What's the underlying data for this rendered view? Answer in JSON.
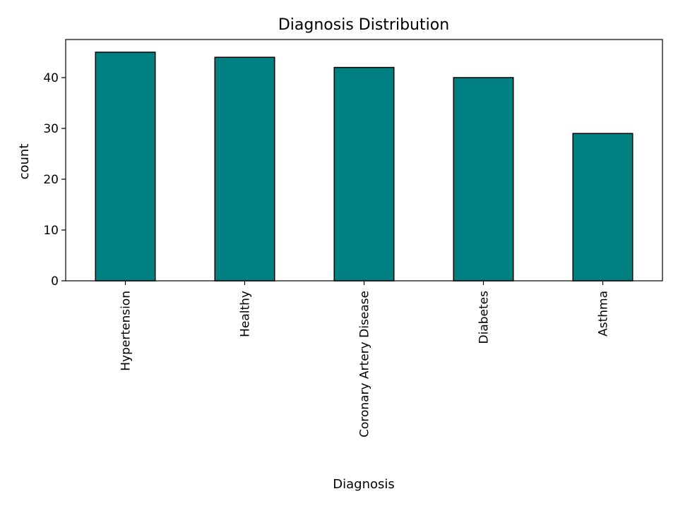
{
  "chart_data": {
    "type": "bar",
    "title": "Diagnosis Distribution",
    "xlabel": "Diagnosis",
    "ylabel": "count",
    "categories": [
      "Hypertension",
      "Healthy",
      "Coronary Artery Disease",
      "Diabetes",
      "Asthma"
    ],
    "values": [
      45,
      44,
      42,
      40,
      29
    ],
    "ylim": [
      0,
      47.5
    ],
    "yticks": [
      0,
      10,
      20,
      30,
      40
    ],
    "bar_color": "#008080",
    "edge_color": "#000000",
    "grid": false,
    "legend": "none"
  }
}
